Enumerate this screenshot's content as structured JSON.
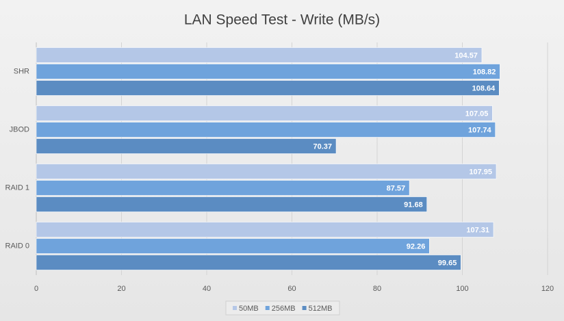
{
  "chart_data": {
    "type": "hbar",
    "title": "LAN Speed Test - Write (MB/s)",
    "categories": [
      "SHR",
      "JBOD",
      "RAID 1",
      "RAID 0"
    ],
    "series": [
      {
        "name": "50MB",
        "color": "#b4c7e7",
        "values": [
          104.57,
          107.05,
          107.95,
          107.31
        ]
      },
      {
        "name": "256MB",
        "color": "#6fa3dc",
        "values": [
          108.82,
          107.74,
          87.57,
          92.26
        ]
      },
      {
        "name": "512MB",
        "color": "#5b8cc2",
        "values": [
          108.64,
          70.37,
          91.68,
          99.65
        ]
      }
    ],
    "xlim": [
      0,
      120
    ],
    "xticks": [
      0,
      20,
      40,
      60,
      80,
      100,
      120
    ],
    "grid": true,
    "legend": "bottom"
  }
}
